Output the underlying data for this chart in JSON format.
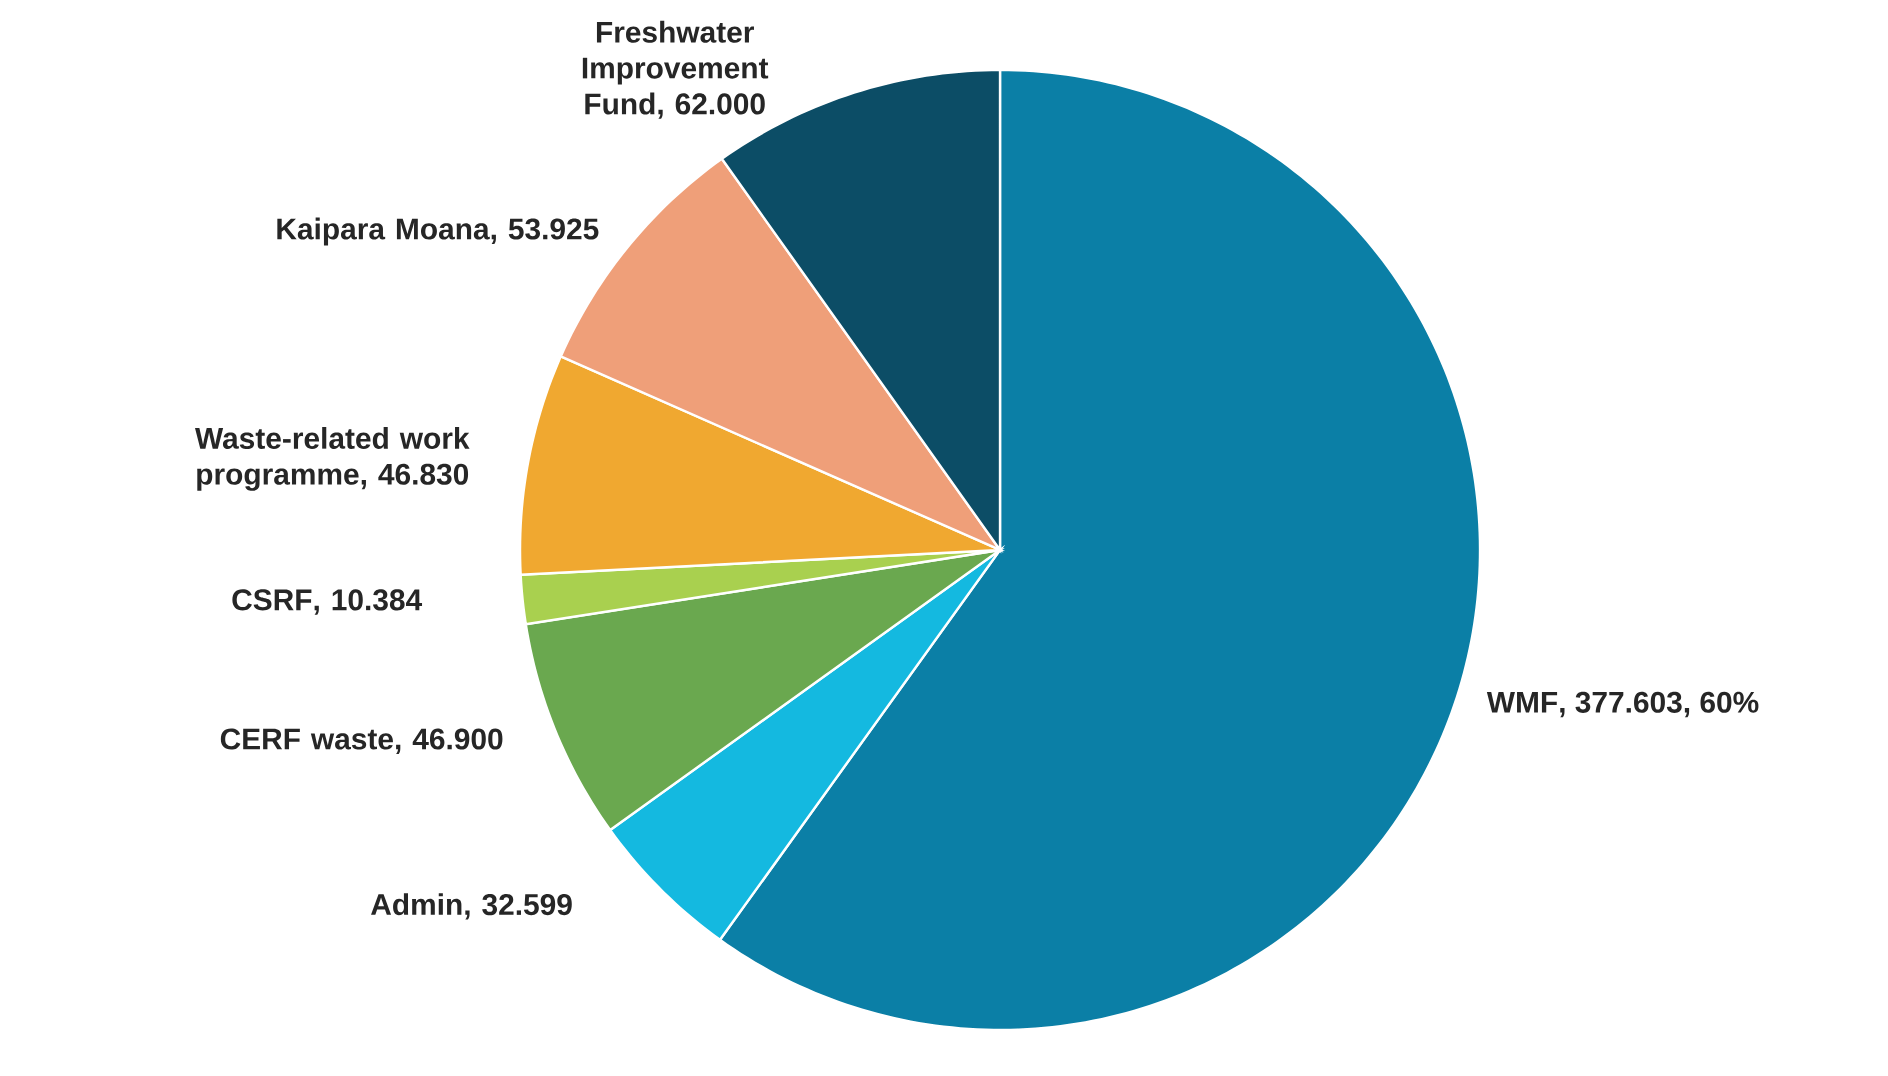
{
  "chart_data": {
    "type": "pie",
    "categories": [
      "WMF",
      "Admin",
      "CERF waste",
      "CSRF",
      "Waste-related work programme",
      "Kaipara Moana",
      "Freshwater Improvement Fund"
    ],
    "values": [
      377.603,
      32.599,
      46.9,
      10.384,
      46.83,
      53.925,
      62.0
    ],
    "value_labels": [
      ", 377.603, 60%",
      ", 32.599",
      ", 46.900",
      ", 10.384",
      ", 46.830",
      ", 53.925",
      ", 62.000"
    ],
    "colors": [
      "#0b7fa6",
      "#14b9e0",
      "#6aa84f",
      "#a9d04f",
      "#f0a830",
      "#ef9f79",
      "#0c4d66"
    ]
  }
}
